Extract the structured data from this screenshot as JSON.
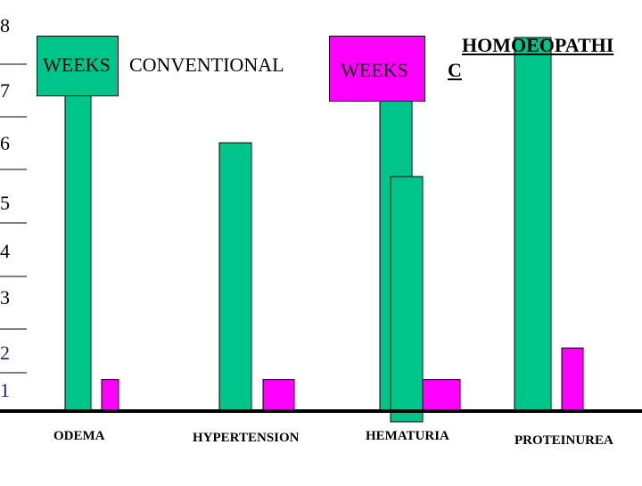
{
  "legend": [
    {
      "label": "WEEKS",
      "series_name": "CONVENTIONAL",
      "color": "#00C58A"
    },
    {
      "label": "WEEKS",
      "series_name": "HOMOEOPATHIC",
      "series_name_line1": "HOMOEOPATHI",
      "series_name_line2": "C",
      "color": "#FF00FF"
    }
  ],
  "chart_data": {
    "type": "bar",
    "categories": [
      "ODEMA",
      "HYPERTENSION",
      "HEMATURIA",
      "PROTEINUREA"
    ],
    "series": [
      {
        "name": "CONVENTIONAL",
        "color": "#00C58A",
        "values": [
          7.0,
          6.0,
          7.0,
          8.0
        ]
      },
      {
        "name": "HOMOEOPATHIC",
        "color": "#FF00FF",
        "values": [
          1.5,
          1.5,
          1.5,
          2.1
        ]
      }
    ],
    "ytick_labels": [
      "1",
      "2",
      "3",
      "4",
      "5",
      "6",
      "7",
      "8"
    ],
    "ylim": [
      0.9,
      9.0
    ],
    "grid": false
  }
}
